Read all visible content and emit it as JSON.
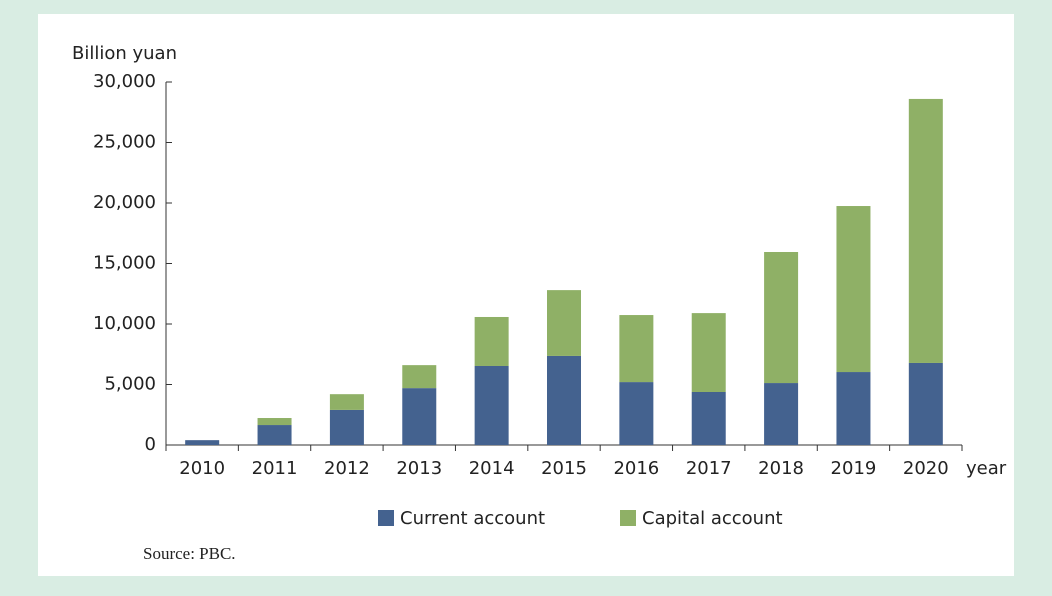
{
  "chart_data": {
    "type": "bar",
    "stacked": true,
    "y_axis_label": "Billion yuan",
    "x_axis_label": "year",
    "source": "Source: PBC.",
    "categories": [
      "2010",
      "2011",
      "2012",
      "2013",
      "2014",
      "2015",
      "2016",
      "2017",
      "2018",
      "2019",
      "2020"
    ],
    "series": [
      {
        "name": "Current account",
        "color": "#44628f",
        "values": [
          400,
          1650,
          2900,
          4700,
          6530,
          7360,
          5200,
          4380,
          5120,
          6030,
          6780
        ]
      },
      {
        "name": "Capital account",
        "color": "#8fb066",
        "values": [
          0,
          580,
          1300,
          1900,
          4050,
          5440,
          5540,
          6520,
          10830,
          13720,
          21820
        ]
      }
    ],
    "ylim": [
      0,
      30000
    ],
    "yticks": [
      0,
      {
        "value": 5000,
        "label": "5,000"
      },
      {
        "value": 10000,
        "label": "10,000"
      },
      {
        "value": 15000,
        "label": "15,000"
      },
      {
        "value": 20000,
        "label": "20,000"
      },
      {
        "value": 25000,
        "label": "25,000"
      },
      {
        "value": 30000,
        "label": "30,000"
      }
    ],
    "legend": "bottom"
  }
}
